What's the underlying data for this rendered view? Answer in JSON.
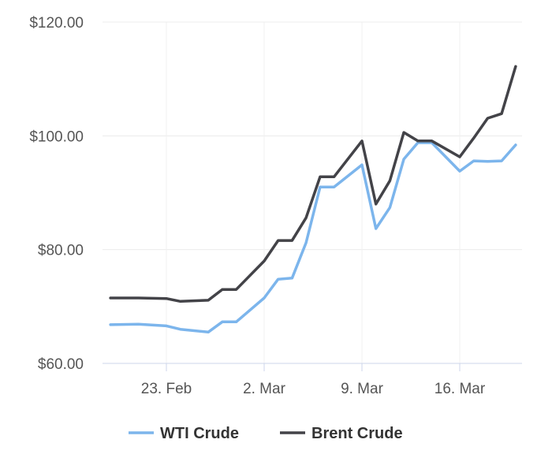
{
  "chart_data": {
    "type": "line",
    "title": "",
    "xlabel": "",
    "ylabel": "",
    "ylim": [
      60,
      120
    ],
    "yticks": [
      60,
      80,
      100,
      120
    ],
    "ytick_labels": [
      "$60.00",
      "$80.00",
      "$100.00",
      "$120.00"
    ],
    "xlim": [
      "2022-02-18",
      "2022-03-20"
    ],
    "xticks": [
      "2022-02-23",
      "2022-03-02",
      "2022-03-09",
      "2022-03-16"
    ],
    "xtick_labels": [
      "23. Feb",
      "2. Mar",
      "9. Mar",
      "16. Mar"
    ],
    "grid": true,
    "legend": "bottom",
    "x": [
      "2022-02-19",
      "2022-02-21",
      "2022-02-23",
      "2022-02-24",
      "2022-02-26",
      "2022-02-27",
      "2022-02-28",
      "2022-03-02",
      "2022-03-03",
      "2022-03-04",
      "2022-03-05",
      "2022-03-06",
      "2022-03-07",
      "2022-03-09",
      "2022-03-10",
      "2022-03-11",
      "2022-03-12",
      "2022-03-13",
      "2022-03-14",
      "2022-03-16",
      "2022-03-17",
      "2022-03-18",
      "2022-03-19",
      "2022-03-20"
    ],
    "series": [
      {
        "name": "WTI Crude",
        "color": "#7cb5ec",
        "values": [
          66.8,
          66.9,
          66.6,
          66.0,
          65.5,
          67.3,
          67.3,
          71.5,
          74.8,
          75.0,
          81.2,
          91.0,
          91.0,
          94.9,
          83.7,
          87.4,
          95.9,
          98.8,
          98.8,
          93.8,
          95.6,
          95.5,
          95.6,
          98.4
        ]
      },
      {
        "name": "Brent Crude",
        "color": "#434348",
        "values": [
          71.5,
          71.5,
          71.4,
          70.9,
          71.1,
          73.0,
          73.0,
          78.0,
          81.6,
          81.6,
          85.6,
          92.8,
          92.8,
          99.1,
          88.0,
          92.1,
          100.6,
          99.1,
          99.1,
          96.3,
          99.6,
          103.1,
          103.9,
          112.2
        ]
      }
    ]
  }
}
